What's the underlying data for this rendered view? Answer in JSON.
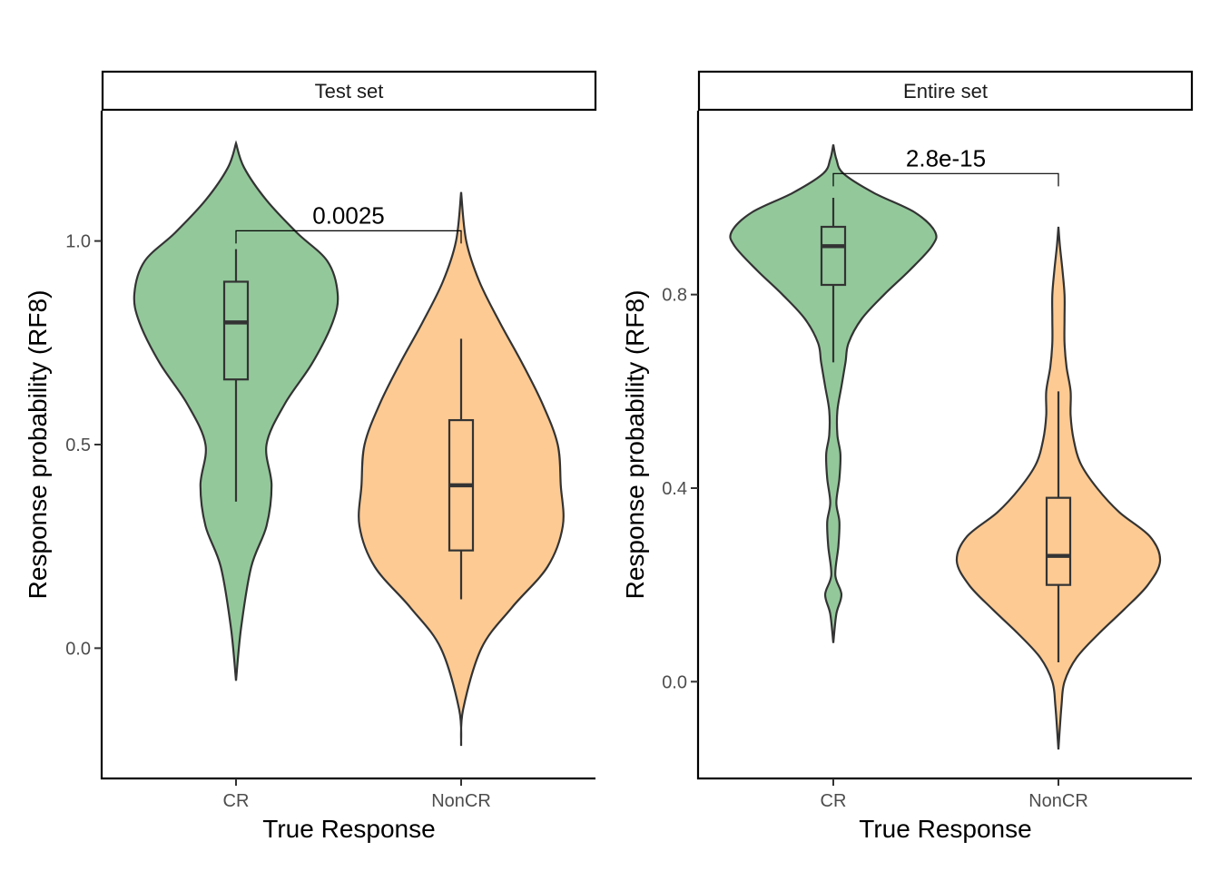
{
  "chart_data": [
    {
      "type": "violin",
      "panel_label": "Test set",
      "xlabel": "True Response",
      "ylabel": "Response probability (RF8)",
      "categories": [
        "CR",
        "NonCR"
      ],
      "yticks": [
        "0.0",
        "0.5",
        "1.0"
      ],
      "ylim": [
        -0.32,
        1.32
      ],
      "annotation": {
        "text": "0.0025",
        "between": [
          "CR",
          "NonCR"
        ],
        "y": 1.025
      },
      "colors": {
        "CR": "#93C89B",
        "NonCR": "#FDCA93"
      },
      "series": [
        {
          "category": "CR",
          "violin_range": [
            -0.08,
            1.24
          ],
          "density": [
            [
              -0.08,
              0.0
            ],
            [
              0.05,
              0.05
            ],
            [
              0.2,
              0.15
            ],
            [
              0.3,
              0.3
            ],
            [
              0.4,
              0.35
            ],
            [
              0.5,
              0.3
            ],
            [
              0.6,
              0.48
            ],
            [
              0.7,
              0.75
            ],
            [
              0.8,
              0.95
            ],
            [
              0.87,
              1.0
            ],
            [
              0.95,
              0.9
            ],
            [
              1.02,
              0.6
            ],
            [
              1.1,
              0.3
            ],
            [
              1.18,
              0.08
            ],
            [
              1.24,
              0.0
            ]
          ],
          "box": {
            "q1": 0.66,
            "median": 0.8,
            "q3": 0.9,
            "lower": 0.36,
            "upper": 0.98
          }
        },
        {
          "category": "NonCR",
          "violin_range": [
            -0.24,
            1.12
          ],
          "density": [
            [
              -0.24,
              0.0
            ],
            [
              -0.15,
              0.02
            ],
            [
              0.0,
              0.2
            ],
            [
              0.1,
              0.5
            ],
            [
              0.2,
              0.85
            ],
            [
              0.3,
              1.0
            ],
            [
              0.4,
              0.98
            ],
            [
              0.5,
              0.95
            ],
            [
              0.6,
              0.8
            ],
            [
              0.7,
              0.6
            ],
            [
              0.8,
              0.38
            ],
            [
              0.9,
              0.18
            ],
            [
              1.0,
              0.05
            ],
            [
              1.12,
              0.0
            ]
          ],
          "box": {
            "q1": 0.24,
            "median": 0.4,
            "q3": 0.56,
            "lower": 0.12,
            "upper": 0.76
          }
        }
      ]
    },
    {
      "type": "violin",
      "panel_label": "Entire set",
      "xlabel": "True Response",
      "ylabel": "Response probability (RF8)",
      "categories": [
        "CR",
        "NonCR"
      ],
      "yticks": [
        "0.0",
        "0.4",
        "0.8"
      ],
      "ylim": [
        -0.2,
        1.18
      ],
      "annotation": {
        "text": "2.8e-15",
        "between": [
          "CR",
          "NonCR"
        ],
        "y": 1.05
      },
      "colors": {
        "CR": "#93C89B",
        "NonCR": "#FDCA93"
      },
      "series": [
        {
          "category": "CR",
          "violin_range": [
            0.08,
            1.11
          ],
          "density": [
            [
              0.08,
              0.0
            ],
            [
              0.14,
              0.03
            ],
            [
              0.18,
              0.08
            ],
            [
              0.22,
              0.02
            ],
            [
              0.28,
              0.05
            ],
            [
              0.33,
              0.06
            ],
            [
              0.37,
              0.03
            ],
            [
              0.42,
              0.06
            ],
            [
              0.47,
              0.07
            ],
            [
              0.51,
              0.04
            ],
            [
              0.56,
              0.04
            ],
            [
              0.61,
              0.08
            ],
            [
              0.66,
              0.12
            ],
            [
              0.7,
              0.15
            ],
            [
              0.75,
              0.28
            ],
            [
              0.8,
              0.5
            ],
            [
              0.85,
              0.75
            ],
            [
              0.9,
              0.97
            ],
            [
              0.93,
              1.0
            ],
            [
              0.97,
              0.8
            ],
            [
              1.01,
              0.4
            ],
            [
              1.05,
              0.1
            ],
            [
              1.08,
              0.03
            ],
            [
              1.11,
              0.0
            ]
          ],
          "box": {
            "q1": 0.82,
            "median": 0.9,
            "q3": 0.94,
            "lower": 0.66,
            "upper": 1.0
          }
        },
        {
          "category": "NonCR",
          "violin_range": [
            -0.14,
            0.94
          ],
          "density": [
            [
              -0.14,
              0.0
            ],
            [
              -0.05,
              0.03
            ],
            [
              0.0,
              0.06
            ],
            [
              0.05,
              0.18
            ],
            [
              0.1,
              0.4
            ],
            [
              0.15,
              0.65
            ],
            [
              0.2,
              0.88
            ],
            [
              0.25,
              1.0
            ],
            [
              0.3,
              0.9
            ],
            [
              0.35,
              0.6
            ],
            [
              0.4,
              0.38
            ],
            [
              0.45,
              0.22
            ],
            [
              0.5,
              0.15
            ],
            [
              0.55,
              0.12
            ],
            [
              0.6,
              0.12
            ],
            [
              0.65,
              0.08
            ],
            [
              0.7,
              0.06
            ],
            [
              0.75,
              0.06
            ],
            [
              0.8,
              0.06
            ],
            [
              0.85,
              0.04
            ],
            [
              0.9,
              0.015
            ],
            [
              0.94,
              0.0
            ]
          ],
          "box": {
            "q1": 0.2,
            "median": 0.26,
            "q3": 0.38,
            "lower": 0.04,
            "upper": 0.6
          }
        }
      ]
    }
  ]
}
